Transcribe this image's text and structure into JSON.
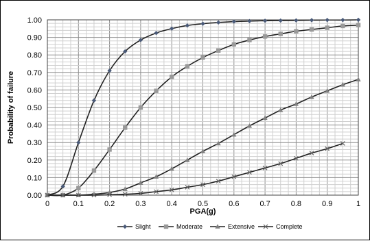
{
  "chart_data": {
    "type": "line",
    "title": "",
    "xlabel": "PGA(g)",
    "ylabel": "Probability of failure",
    "xlim": [
      0,
      1
    ],
    "ylim": [
      0,
      1
    ],
    "x_ticks": [
      "0",
      "0.1",
      "0.2",
      "0.3",
      "0.4",
      "0.5",
      "0.6",
      "0.7",
      "0.8",
      "0.9",
      "1"
    ],
    "y_ticks": [
      "0.00",
      "0.10",
      "0.20",
      "0.30",
      "0.40",
      "0.50",
      "0.60",
      "0.70",
      "0.80",
      "0.90",
      "1.00"
    ],
    "grid": true,
    "legend_position": "bottom",
    "series": [
      {
        "name": "Slight",
        "marker": "diamond",
        "color": "#4a5a78",
        "x": [
          0,
          0.05,
          0.1,
          0.15,
          0.2,
          0.25,
          0.3,
          0.35,
          0.4,
          0.45,
          0.5,
          0.55,
          0.6,
          0.65,
          0.7,
          0.75,
          0.8,
          0.85,
          0.9,
          0.95,
          1.0
        ],
        "y": [
          0.0,
          0.05,
          0.3,
          0.54,
          0.71,
          0.82,
          0.885,
          0.925,
          0.95,
          0.968,
          0.978,
          0.985,
          0.99,
          0.993,
          0.995,
          0.996,
          0.997,
          0.998,
          0.999,
          0.999,
          1.0
        ]
      },
      {
        "name": "Moderate",
        "marker": "square",
        "color": "#999999",
        "x": [
          0,
          0.05,
          0.1,
          0.15,
          0.2,
          0.25,
          0.3,
          0.35,
          0.4,
          0.45,
          0.5,
          0.55,
          0.6,
          0.65,
          0.7,
          0.75,
          0.8,
          0.85,
          0.9,
          0.95,
          1.0
        ],
        "y": [
          0.0,
          0.0,
          0.04,
          0.14,
          0.26,
          0.385,
          0.5,
          0.595,
          0.675,
          0.735,
          0.785,
          0.825,
          0.86,
          0.885,
          0.905,
          0.92,
          0.935,
          0.945,
          0.955,
          0.965,
          0.97
        ]
      },
      {
        "name": "Extensive",
        "marker": "triangle",
        "color": "#808080",
        "x": [
          0,
          0.05,
          0.1,
          0.15,
          0.2,
          0.25,
          0.3,
          0.35,
          0.4,
          0.45,
          0.5,
          0.55,
          0.6,
          0.65,
          0.7,
          0.75,
          0.8,
          0.85,
          0.9,
          0.95,
          1.0
        ],
        "y": [
          0.0,
          0.0,
          0.0,
          0.005,
          0.015,
          0.035,
          0.07,
          0.105,
          0.15,
          0.2,
          0.25,
          0.295,
          0.345,
          0.395,
          0.44,
          0.485,
          0.52,
          0.56,
          0.595,
          0.63,
          0.66
        ]
      },
      {
        "name": "Complete",
        "marker": "cross",
        "color": "#666666",
        "x": [
          0,
          0.05,
          0.1,
          0.15,
          0.2,
          0.25,
          0.3,
          0.35,
          0.4,
          0.45,
          0.5,
          0.55,
          0.6,
          0.65,
          0.7,
          0.75,
          0.8,
          0.85,
          0.9,
          0.95
        ],
        "y": [
          0.0,
          0.0,
          0.0,
          0.0,
          0.002,
          0.005,
          0.01,
          0.02,
          0.03,
          0.045,
          0.06,
          0.08,
          0.105,
          0.13,
          0.155,
          0.18,
          0.21,
          0.24,
          0.265,
          0.295
        ]
      }
    ]
  }
}
